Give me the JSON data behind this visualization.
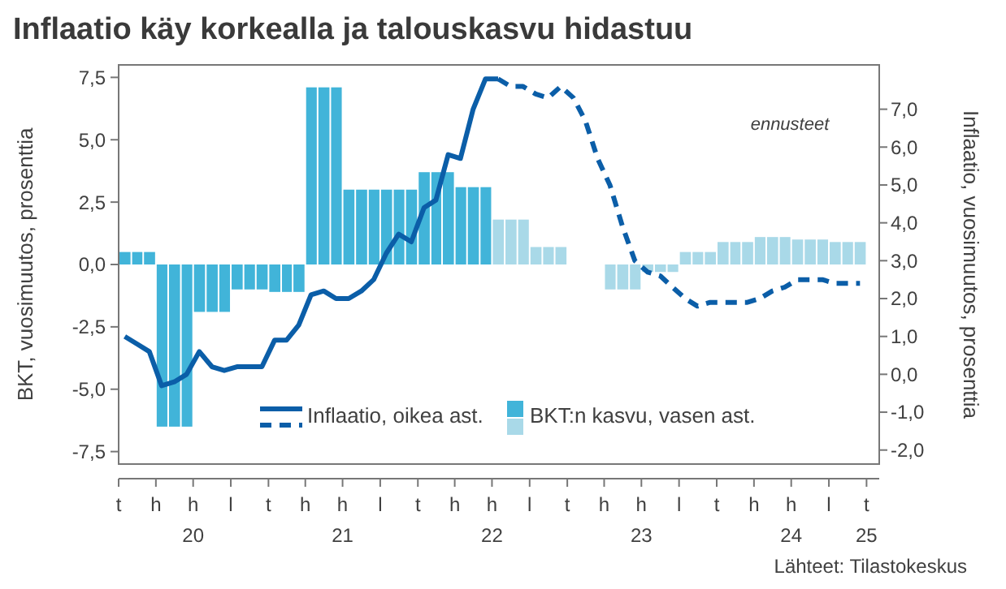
{
  "chart_data": {
    "type": "bar",
    "title": "Inflaatio käy korkealla ja talouskasvu hidastuu",
    "ylabel": "BKT, vuosimuutos, prosenttia",
    "y2label": "Inflaatio, vuosimuutos, prosenttia",
    "annotations": [
      "ennusteet",
      "Lähteet: Tilastokeskus"
    ],
    "xlim": [
      "2020-01",
      "2025-02"
    ],
    "xticks": [
      {
        "value": "2020-01",
        "label": "t"
      },
      {
        "value": "2020-04",
        "label": "h"
      },
      {
        "value": "2020-07",
        "label": "h\n20"
      },
      {
        "value": "2020-10",
        "label": "l"
      },
      {
        "value": "2021-01",
        "label": "t"
      },
      {
        "value": "2021-04",
        "label": "h"
      },
      {
        "value": "2021-07",
        "label": "h\n21"
      },
      {
        "value": "2021-10",
        "label": "l"
      },
      {
        "value": "2022-01",
        "label": "t"
      },
      {
        "value": "2022-04",
        "label": "h"
      },
      {
        "value": "2022-07",
        "label": "h\n22"
      },
      {
        "value": "2022-10",
        "label": "l"
      },
      {
        "value": "2023-01",
        "label": "t"
      },
      {
        "value": "2023-04",
        "label": "h"
      },
      {
        "value": "2023-07",
        "label": "h\n23"
      },
      {
        "value": "2023-10",
        "label": "l"
      },
      {
        "value": "2024-01",
        "label": "t"
      },
      {
        "value": "2024-04",
        "label": "h"
      },
      {
        "value": "2024-07",
        "label": "h\n24"
      },
      {
        "value": "2024-10",
        "label": "l"
      },
      {
        "value": "2025-01",
        "label": "t\n25"
      }
    ],
    "ylim": [
      -8,
      8
    ],
    "yticks": [
      {
        "value": -7.5,
        "label": "-7,5"
      },
      {
        "value": -5,
        "label": "-5,0"
      },
      {
        "value": -2.5,
        "label": "-2,5"
      },
      {
        "value": 0,
        "label": "0,0"
      },
      {
        "value": 2.5,
        "label": "2,5"
      },
      {
        "value": 5,
        "label": "5,0"
      },
      {
        "value": 7.5,
        "label": "7,5"
      }
    ],
    "y2lim": [
      -2.37,
      8.17
    ],
    "y2ticks": [
      {
        "value": -2,
        "label": "-2,0"
      },
      {
        "value": -1,
        "label": "-1,0"
      },
      {
        "value": 0,
        "label": "0,0"
      },
      {
        "value": 1,
        "label": "1,0"
      },
      {
        "value": 2,
        "label": "2,0"
      },
      {
        "value": 3,
        "label": "3,0"
      },
      {
        "value": 4,
        "label": "4,0"
      },
      {
        "value": 5,
        "label": "5,0"
      },
      {
        "value": 6,
        "label": "6,0"
      },
      {
        "value": 7,
        "label": "7,0"
      }
    ],
    "grid": false,
    "legend": "bottom",
    "series": [
      {
        "name": "Inflaatio, oikea ast.",
        "type": "line",
        "axis": "y2",
        "color": "#0b5ea8",
        "line_style": "solid",
        "x": [
          "2020-01-16",
          "2020-02-15",
          "2020-03-16",
          "2020-04-15",
          "2020-05-16",
          "2020-06-15",
          "2020-07-16",
          "2020-08-16",
          "2020-09-15",
          "2020-10-16",
          "2020-11-15",
          "2020-12-16",
          "2021-01-16",
          "2021-02-14",
          "2021-03-16",
          "2021-04-15",
          "2021-05-16",
          "2021-06-15",
          "2021-07-16",
          "2021-08-16",
          "2021-09-15",
          "2021-10-16",
          "2021-11-15",
          "2021-12-16",
          "2022-01-16",
          "2022-02-14",
          "2022-03-16",
          "2022-04-15",
          "2022-05-16",
          "2022-06-15",
          "2022-07-16"
        ],
        "values": [
          1.0,
          0.8,
          0.6,
          -0.3,
          -0.2,
          0.0,
          0.6,
          0.2,
          0.1,
          0.2,
          0.2,
          0.2,
          0.9,
          0.9,
          1.3,
          2.1,
          2.2,
          2.0,
          2.0,
          2.2,
          2.5,
          3.2,
          3.7,
          3.5,
          4.4,
          4.6,
          5.8,
          5.7,
          7.0,
          7.8,
          7.8
        ]
      },
      {
        "type": "line",
        "axis": "y2",
        "color": "#0b5ea8",
        "line_style": "dashed",
        "x": [
          "2022-07-16",
          "2022-08-16",
          "2022-09-15",
          "2022-10-16",
          "2022-11-15",
          "2022-12-16",
          "2023-01-16",
          "2023-02-14",
          "2023-03-16",
          "2023-04-15",
          "2023-05-16",
          "2023-06-15",
          "2023-07-16",
          "2023-08-16",
          "2023-09-15",
          "2023-10-16",
          "2023-11-15",
          "2023-12-16",
          "2024-01-16",
          "2024-02-15",
          "2024-03-16",
          "2024-04-15",
          "2024-05-16",
          "2024-06-15",
          "2024-07-16",
          "2024-08-16",
          "2024-09-15",
          "2024-10-16",
          "2024-11-15",
          "2024-12-16"
        ],
        "values": [
          7.8,
          7.6,
          7.6,
          7.4,
          7.3,
          7.6,
          7.3,
          6.7,
          5.7,
          5.0,
          3.9,
          3.0,
          2.7,
          2.6,
          2.3,
          2.0,
          1.8,
          1.9,
          1.9,
          1.9,
          1.9,
          2.0,
          2.2,
          2.3,
          2.5,
          2.5,
          2.5,
          2.4,
          2.4,
          2.4
        ]
      },
      {
        "name": "BKT:n kasvu, vasen ast.",
        "color": "#41b4d9",
        "x": [
          "2020-01",
          "2020-02",
          "2020-03",
          "2020-04",
          "2020-05",
          "2020-06",
          "2020-07",
          "2020-08",
          "2020-09",
          "2020-10",
          "2020-11",
          "2020-12",
          "2021-01",
          "2021-02",
          "2021-03",
          "2021-04",
          "2021-05",
          "2021-06",
          "2021-07",
          "2021-08",
          "2021-09",
          "2021-10",
          "2021-11",
          "2021-12",
          "2022-01",
          "2022-02",
          "2022-03",
          "2022-04",
          "2022-05",
          "2022-06"
        ],
        "values": [
          0.5,
          0.5,
          0.5,
          -6.5,
          -6.5,
          -6.5,
          -1.9,
          -1.9,
          -1.9,
          -1.0,
          -1.0,
          -1.0,
          -1.1,
          -1.1,
          -1.1,
          7.1,
          7.1,
          7.1,
          3.0,
          3.0,
          3.0,
          3.0,
          3.0,
          3.0,
          3.7,
          3.7,
          3.7,
          3.1,
          3.1,
          3.1
        ]
      },
      {
        "color": "#a9d9e8",
        "x": [
          "2022-07",
          "2022-08",
          "2022-09",
          "2022-10",
          "2022-11",
          "2022-12",
          "2023-01",
          "2023-02",
          "2023-03",
          "2023-04",
          "2023-05",
          "2023-06",
          "2023-07",
          "2023-08",
          "2023-09",
          "2023-10",
          "2023-11",
          "2023-12",
          "2024-01",
          "2024-02",
          "2024-03",
          "2024-04",
          "2024-05",
          "2024-06",
          "2024-07",
          "2024-08",
          "2024-09",
          "2024-10",
          "2024-11",
          "2024-12"
        ],
        "values": [
          1.8,
          1.8,
          1.8,
          0.7,
          0.7,
          0.7,
          0.0,
          0.0,
          0.0,
          -1.0,
          -1.0,
          -1.0,
          -0.3,
          -0.3,
          -0.3,
          0.5,
          0.5,
          0.5,
          0.9,
          0.9,
          0.9,
          1.1,
          1.1,
          1.1,
          1.0,
          1.0,
          1.0,
          0.9,
          0.9,
          0.9
        ]
      }
    ]
  }
}
